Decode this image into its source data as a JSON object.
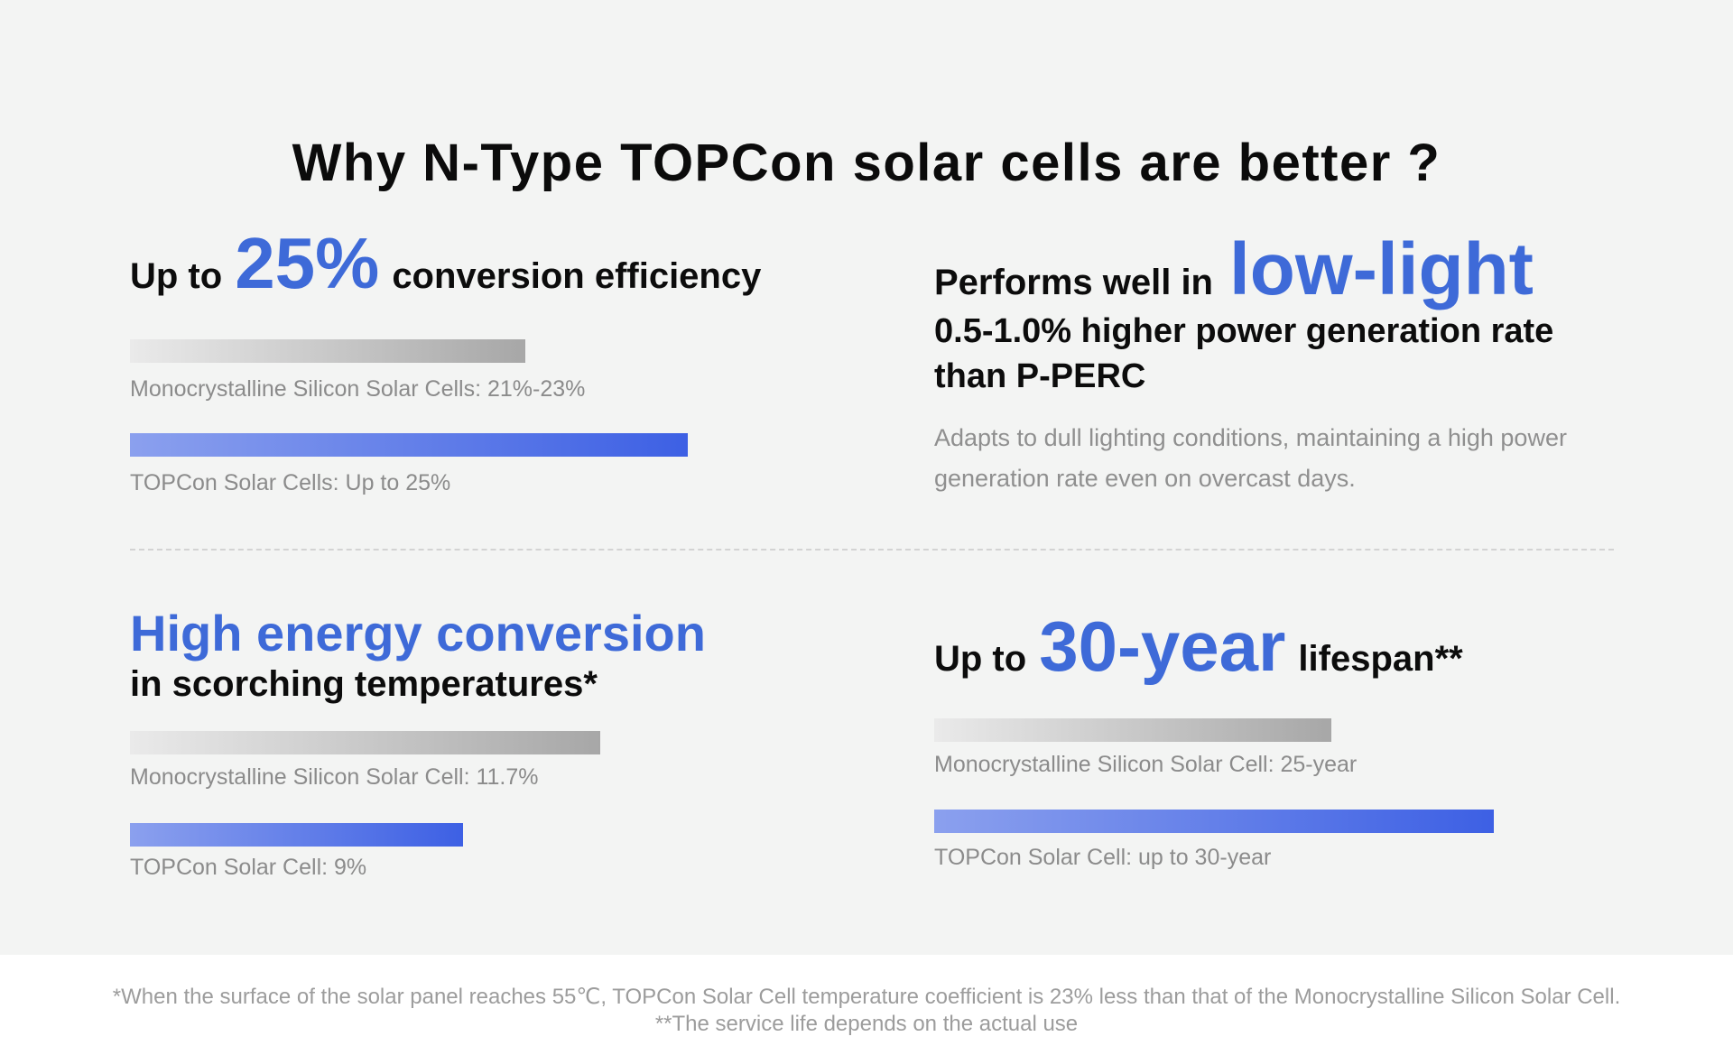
{
  "title": "Why N-Type TOPCon solar cells are better ?",
  "colors": {
    "background": "#F3F4F3",
    "footer_background": "#FFFFFF",
    "accent_blue": "#3E6AD8",
    "bar_blue_gradient": [
      "#8BA0EE",
      "#3D60E4"
    ],
    "bar_gray_gradient": [
      "#EAEAEA",
      "#A7A7A7"
    ],
    "label_gray": "#8B8B8B",
    "text_black": "#0B0B0B"
  },
  "panels": {
    "efficiency": {
      "prefix": "Up to",
      "highlight": "25%",
      "suffix": "conversion efficiency",
      "mono": {
        "label": "Monocrystalline Silicon Solar Cells: 21%-23%",
        "style": "width:438px"
      },
      "topcon": {
        "label": "TOPCon Solar Cells: Up to 25%",
        "style": "width:618px"
      }
    },
    "low_light": {
      "prefix": "Performs well in",
      "highlight": "low-light",
      "subtitle_line1": "0.5-1.0% higher power generation rate",
      "subtitle_line2": "than P-PERC",
      "desc_line1": "Adapts to dull lighting conditions, maintaining a high power",
      "desc_line2": "generation rate even on overcast days."
    },
    "temperature": {
      "title_highlight": "High energy conversion",
      "title_rest": "in scorching temperatures*",
      "mono": {
        "label": "Monocrystalline Silicon Solar Cell: 11.7%",
        "style": "width:521px"
      },
      "topcon": {
        "label": "TOPCon Solar Cell: 9%",
        "style": "width:369px"
      }
    },
    "lifespan": {
      "prefix": "Up to",
      "highlight": "30-year",
      "suffix": "lifespan**",
      "mono": {
        "label": "Monocrystalline Silicon Solar Cell: 25-year",
        "style": "width:440px"
      },
      "topcon": {
        "label": "TOPCon Solar Cell: up to 30-year",
        "style": "width:620px"
      }
    }
  },
  "footer": {
    "line1": "*When the surface of the solar panel reaches 55℃, TOPCon Solar Cell temperature coefficient is 23% less than that of the Monocrystalline Silicon Solar Cell.",
    "line2": "**The service life depends on the actual use"
  },
  "chart_data": [
    {
      "type": "bar",
      "orientation": "horizontal",
      "title": "Up to 25% conversion efficiency",
      "categories": [
        "Monocrystalline Silicon Solar Cells",
        "TOPCon Solar Cells"
      ],
      "values": [
        23,
        25
      ],
      "value_labels": [
        "21%-23%",
        "Up to 25%"
      ],
      "bar_colors": [
        "gray-gradient",
        "blue-gradient"
      ],
      "legend_position": "none",
      "grid": false
    },
    {
      "type": "bar",
      "orientation": "horizontal",
      "title": "High energy conversion in scorching temperatures*",
      "categories": [
        "Monocrystalline Silicon Solar Cell",
        "TOPCon Solar Cell"
      ],
      "values": [
        11.7,
        9
      ],
      "value_labels": [
        "11.7%",
        "9%"
      ],
      "bar_colors": [
        "gray-gradient",
        "blue-gradient"
      ],
      "legend_position": "none",
      "grid": false
    },
    {
      "type": "bar",
      "orientation": "horizontal",
      "title": "Up to 30-year lifespan**",
      "categories": [
        "Monocrystalline Silicon Solar Cell",
        "TOPCon Solar Cell"
      ],
      "values": [
        25,
        30
      ],
      "value_labels": [
        "25-year",
        "up to 30-year"
      ],
      "bar_colors": [
        "gray-gradient",
        "blue-gradient"
      ],
      "legend_position": "none",
      "grid": false
    }
  ]
}
